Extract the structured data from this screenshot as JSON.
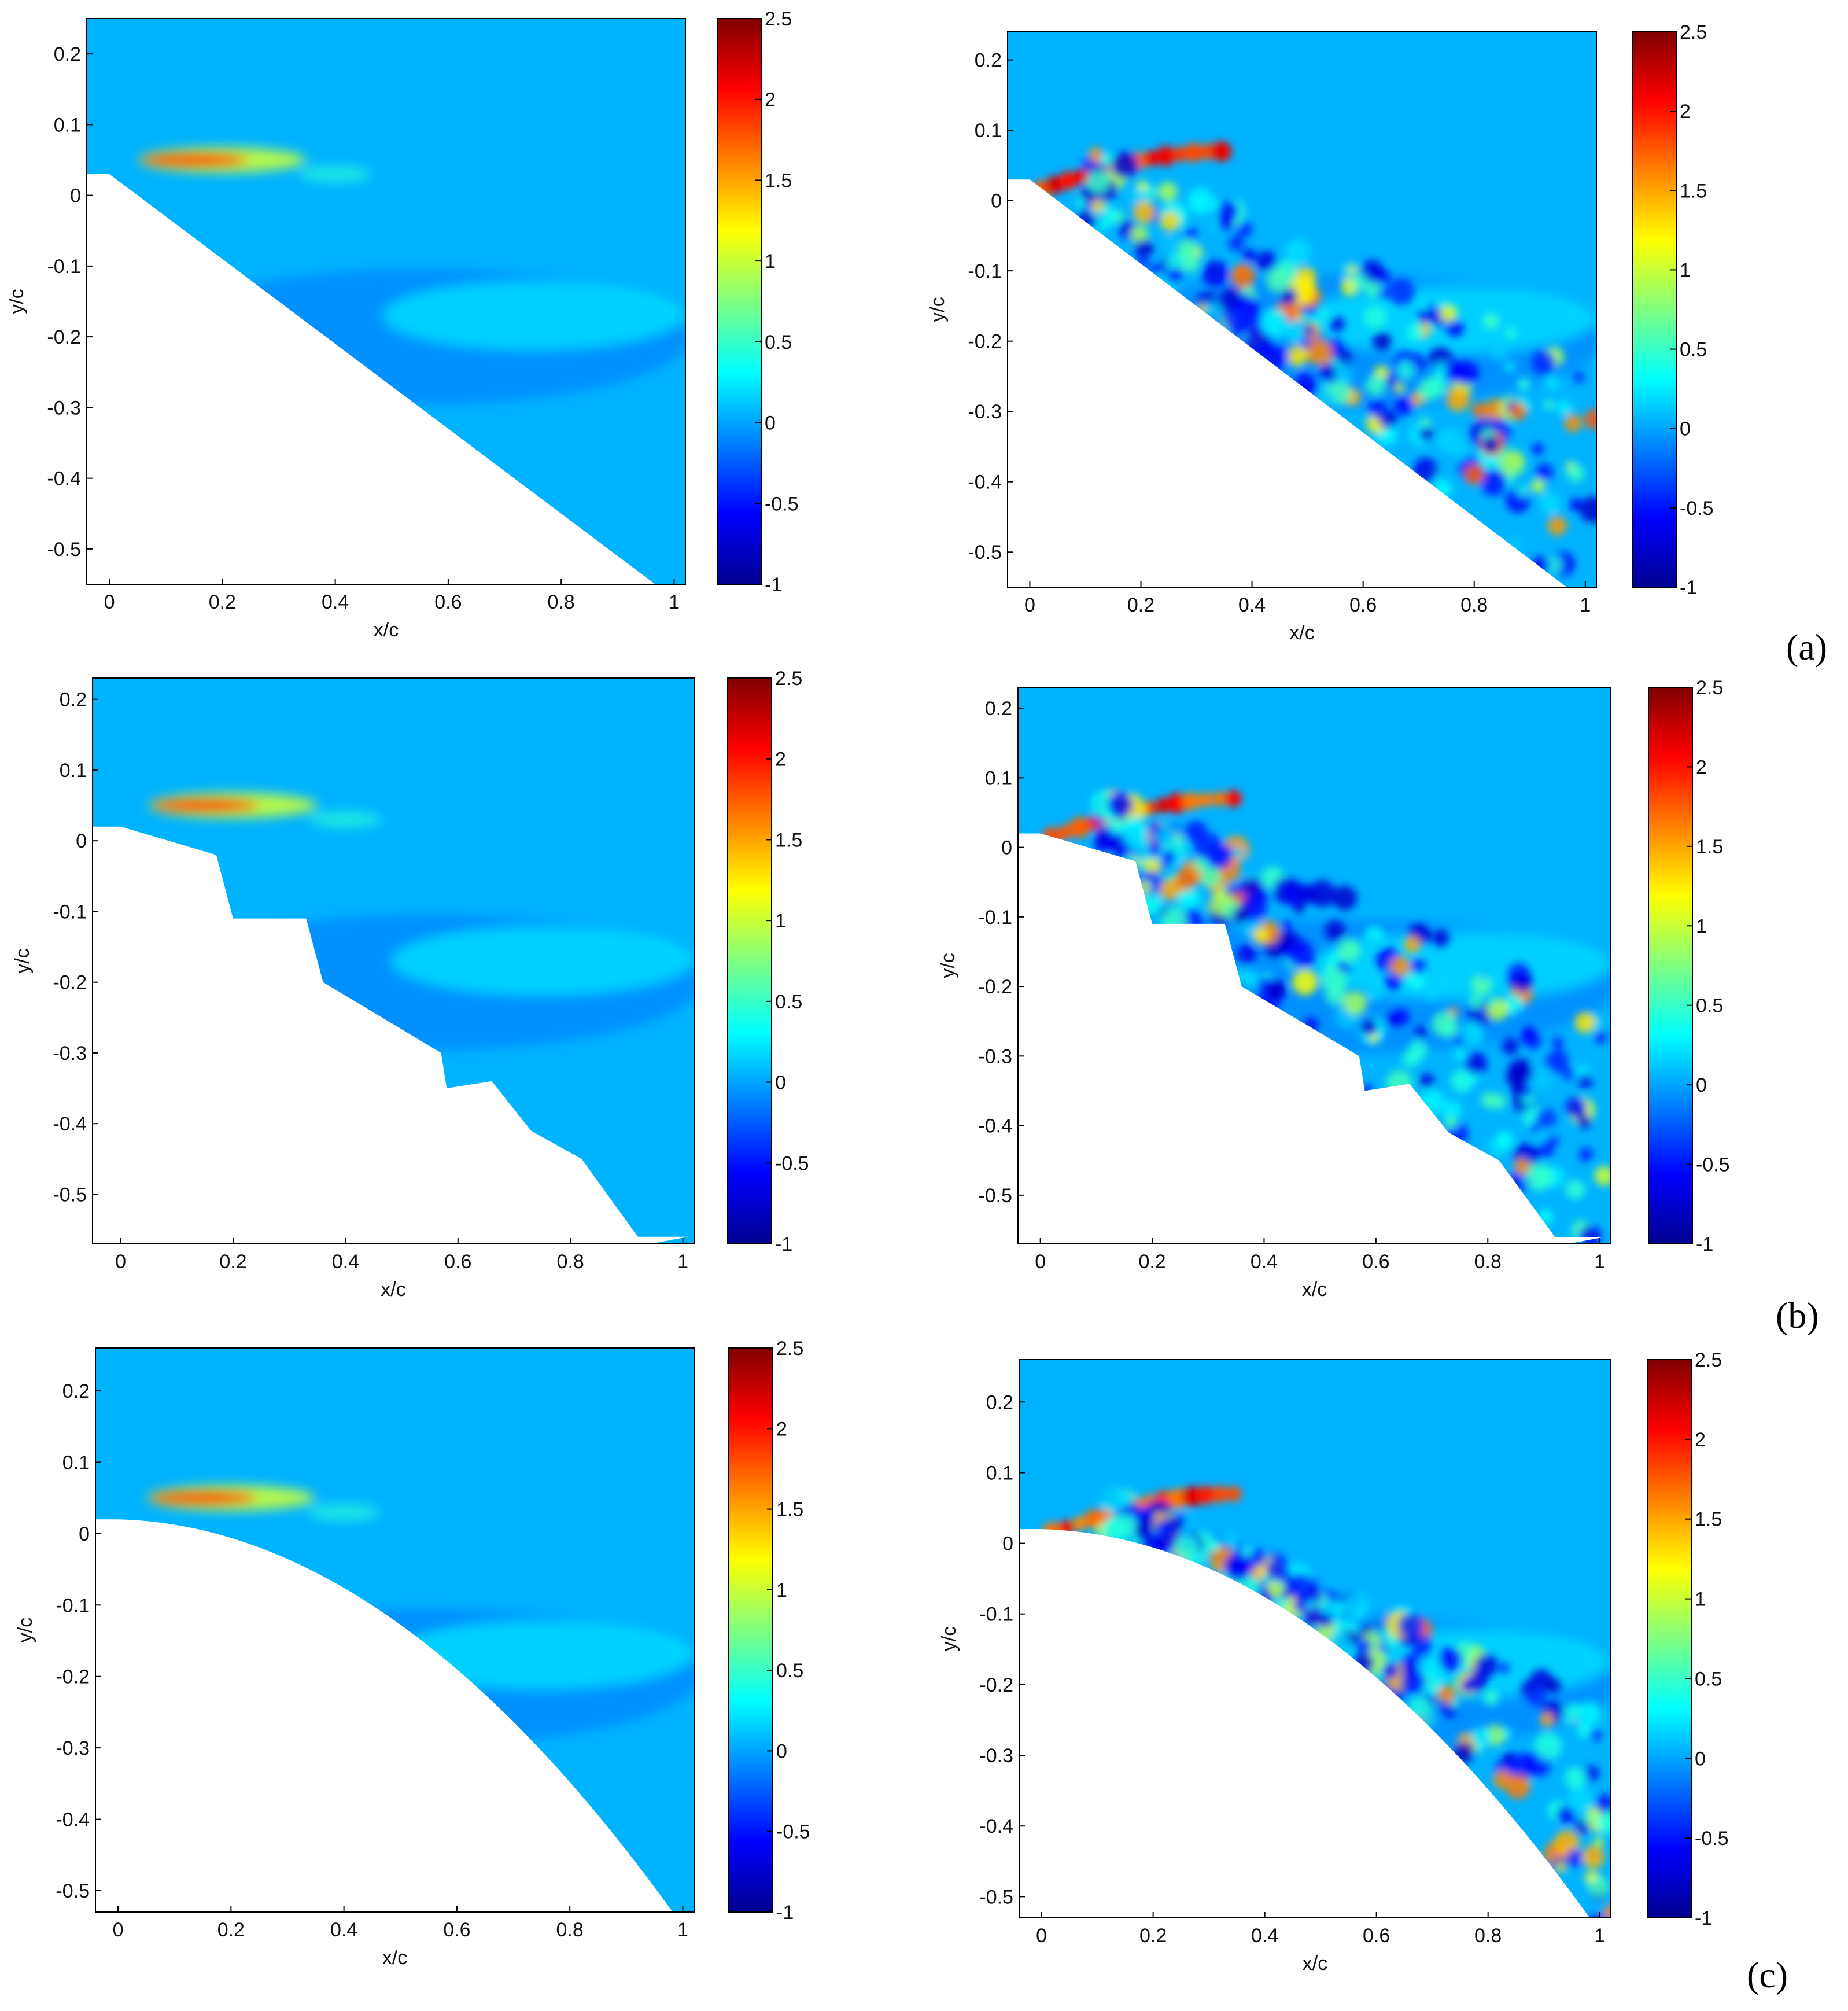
{
  "figure": {
    "row_labels": [
      "(a)",
      "(b)",
      "(c)"
    ]
  },
  "colorbar": {
    "range": [
      -1,
      2.5
    ],
    "ticks": [
      "2.5",
      "2",
      "1.5",
      "1",
      "0.5",
      "0",
      "-0.5",
      "-1"
    ],
    "colormap": "jet",
    "colors": [
      "#00008f",
      "#0000ff",
      "#0080ff",
      "#00ffff",
      "#80ff80",
      "#ffff00",
      "#ff8000",
      "#ff0000",
      "#800000"
    ]
  },
  "chart_data": [
    {
      "type": "heatmap",
      "panel": "(a)",
      "side": "left",
      "field": "mean",
      "xlabel": "x/c",
      "ylabel": "y/c",
      "xlim": [
        -0.04,
        1.02
      ],
      "ylim": [
        -0.55,
        0.25
      ],
      "xticks": [
        "0",
        "0.2",
        "0.4",
        "0.6",
        "0.8",
        "1"
      ],
      "yticks": [
        "0.2",
        "0.1",
        "0",
        "-0.1",
        "-0.2",
        "-0.3",
        "-0.4",
        "-0.5"
      ],
      "clim": [
        -1,
        2.5
      ],
      "surface": "straight",
      "colorbar_ticks": [
        "2.5",
        "2",
        "1.5",
        "1",
        "0.5",
        "0",
        "-0.5",
        "-1"
      ]
    },
    {
      "type": "heatmap",
      "panel": "(a)",
      "side": "right",
      "field": "instantaneous",
      "xlabel": "x/c",
      "ylabel": "y/c",
      "xlim": [
        -0.04,
        1.02
      ],
      "ylim": [
        -0.55,
        0.24
      ],
      "xticks": [
        "0",
        "0.2",
        "0.4",
        "0.6",
        "0.8",
        "1"
      ],
      "yticks": [
        "0.2",
        "0.1",
        "0",
        "-0.1",
        "-0.2",
        "-0.3",
        "-0.4",
        "-0.5"
      ],
      "clim": [
        -1,
        2.5
      ],
      "surface": "straight",
      "colorbar_ticks": [
        "2.5",
        "2",
        "1.5",
        "1",
        "0.5",
        "0",
        "-0.5",
        "-1"
      ]
    },
    {
      "type": "heatmap",
      "panel": "(b)",
      "side": "left",
      "field": "mean",
      "xlabel": "x/c",
      "ylabel": "y/c",
      "xlim": [
        -0.05,
        1.02
      ],
      "ylim": [
        -0.57,
        0.23
      ],
      "xticks": [
        "0",
        "0.2",
        "0.4",
        "0.6",
        "0.8",
        "1"
      ],
      "yticks": [
        "0.2",
        "0.1",
        "0",
        "-0.1",
        "-0.2",
        "-0.3",
        "-0.4",
        "-0.5"
      ],
      "clim": [
        -1,
        2.5
      ],
      "surface": "stepped",
      "colorbar_ticks": [
        "2.5",
        "2",
        "1.5",
        "1",
        "0.5",
        "0",
        "-0.5",
        "-1"
      ]
    },
    {
      "type": "heatmap",
      "panel": "(b)",
      "side": "right",
      "field": "instantaneous",
      "xlabel": "x/c",
      "ylabel": "y/c",
      "xlim": [
        -0.04,
        1.02
      ],
      "ylim": [
        -0.57,
        0.23
      ],
      "xticks": [
        "0",
        "0.2",
        "0.4",
        "0.6",
        "0.8",
        "1"
      ],
      "yticks": [
        "0.2",
        "0.1",
        "0",
        "-0.1",
        "-0.2",
        "-0.3",
        "-0.4",
        "-0.5"
      ],
      "clim": [
        -1,
        2.5
      ],
      "surface": "stepped",
      "colorbar_ticks": [
        "2.5",
        "2",
        "1.5",
        "1",
        "0.5",
        "0",
        "-0.5",
        "-1"
      ]
    },
    {
      "type": "heatmap",
      "panel": "(c)",
      "side": "left",
      "field": "mean",
      "xlabel": "x/c",
      "ylabel": "y/c",
      "xlim": [
        -0.04,
        1.02
      ],
      "ylim": [
        -0.53,
        0.26
      ],
      "xticks": [
        "0",
        "0.2",
        "0.4",
        "0.6",
        "0.8",
        "1"
      ],
      "yticks": [
        "0.2",
        "0.1",
        "0",
        "-0.1",
        "-0.2",
        "-0.3",
        "-0.4",
        "-0.5"
      ],
      "clim": [
        -1,
        2.5
      ],
      "surface": "curved",
      "colorbar_ticks": [
        "2.5",
        "2",
        "1.5",
        "1",
        "0.5",
        "0",
        "-0.5",
        "-1"
      ]
    },
    {
      "type": "heatmap",
      "panel": "(c)",
      "side": "right",
      "field": "instantaneous",
      "xlabel": "x/c",
      "ylabel": "y/c",
      "xlim": [
        -0.04,
        1.02
      ],
      "ylim": [
        -0.53,
        0.26
      ],
      "xticks": [
        "0",
        "0.2",
        "0.4",
        "0.6",
        "0.8",
        "1"
      ],
      "yticks": [
        "0.2",
        "0.1",
        "0",
        "-0.1",
        "-0.2",
        "-0.3",
        "-0.4",
        "-0.5"
      ],
      "clim": [
        -1,
        2.5
      ],
      "surface": "curved",
      "colorbar_ticks": [
        "2.5",
        "2",
        "1.5",
        "1",
        "0.5",
        "0",
        "-0.5",
        "-1"
      ]
    }
  ]
}
